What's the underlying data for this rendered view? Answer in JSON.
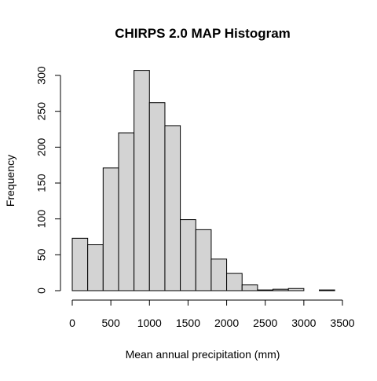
{
  "chart_data": {
    "type": "bar",
    "subtype": "histogram",
    "title": "CHIRPS 2.0 MAP Histogram",
    "xlabel": "Mean annual precipitation (mm)",
    "ylabel": "Frequency",
    "bin_width": 200,
    "bins": [
      {
        "start": 0,
        "end": 200,
        "count": 73
      },
      {
        "start": 200,
        "end": 400,
        "count": 64
      },
      {
        "start": 400,
        "end": 600,
        "count": 171
      },
      {
        "start": 600,
        "end": 800,
        "count": 220
      },
      {
        "start": 800,
        "end": 1000,
        "count": 307
      },
      {
        "start": 1000,
        "end": 1200,
        "count": 262
      },
      {
        "start": 1200,
        "end": 1400,
        "count": 230
      },
      {
        "start": 1400,
        "end": 1600,
        "count": 99
      },
      {
        "start": 1600,
        "end": 1800,
        "count": 85
      },
      {
        "start": 1800,
        "end": 2000,
        "count": 44
      },
      {
        "start": 2000,
        "end": 2200,
        "count": 24
      },
      {
        "start": 2200,
        "end": 2400,
        "count": 8
      },
      {
        "start": 2400,
        "end": 2600,
        "count": 1
      },
      {
        "start": 2600,
        "end": 2800,
        "count": 2
      },
      {
        "start": 2800,
        "end": 3000,
        "count": 3
      },
      {
        "start": 3000,
        "end": 3200,
        "count": 0
      },
      {
        "start": 3200,
        "end": 3400,
        "count": 1
      }
    ],
    "xlim": [
      0,
      3500
    ],
    "ylim": [
      0,
      307
    ],
    "x_ticks": [
      0,
      500,
      1000,
      1500,
      2000,
      2500,
      3000,
      3500
    ],
    "y_ticks": [
      0,
      50,
      100,
      150,
      200,
      250,
      300
    ],
    "bar_fill": "#d3d3d3",
    "bar_stroke": "#000000",
    "grid": false,
    "legend": "none"
  }
}
